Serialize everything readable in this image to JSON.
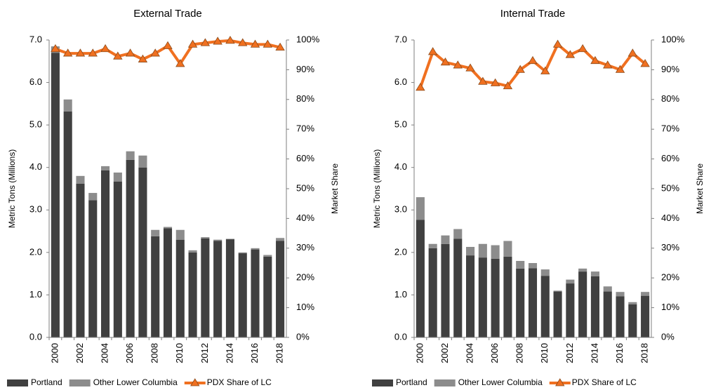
{
  "chart_data": [
    {
      "type": "combo",
      "title": "External Trade",
      "y_label": "Metric Tons (Millions)",
      "y2_label": "Market Share",
      "categories": [
        "2000",
        null,
        "2002",
        null,
        "2004",
        null,
        "2006",
        null,
        "2008",
        null,
        "2010",
        null,
        "2012",
        null,
        "2014",
        null,
        "2016",
        null,
        "2018"
      ],
      "series": [
        {
          "name": "Portland",
          "color": "#404040",
          "kind": "bar",
          "values": [
            6.7,
            5.32,
            3.62,
            3.23,
            3.93,
            3.67,
            4.18,
            4.0,
            2.38,
            2.57,
            2.3,
            2.0,
            2.33,
            2.27,
            2.31,
            1.98,
            2.07,
            1.9,
            2.27
          ]
        },
        {
          "name": "Other Lower Columbia",
          "color": "#8c8c8c",
          "kind": "bar",
          "values": [
            0.15,
            0.28,
            0.18,
            0.17,
            0.1,
            0.21,
            0.2,
            0.28,
            0.15,
            0.03,
            0.23,
            0.05,
            0.03,
            0.03,
            0.01,
            0.02,
            0.03,
            0.04,
            0.07
          ]
        },
        {
          "name": "PDX Share of LC",
          "color": "#f07020",
          "kind": "line",
          "axis": "y2",
          "values": [
            97,
            95.5,
            95.5,
            95.5,
            97,
            94.5,
            95.5,
            93.5,
            95.5,
            98,
            92,
            98.5,
            99,
            99.5,
            99.8,
            99,
            98.5,
            98.5,
            97.5
          ]
        }
      ],
      "ylim": [
        0,
        7
      ],
      "yticks": [
        {
          "value": 0,
          "label": "0.0"
        },
        {
          "value": 1,
          "label": "1.0"
        },
        {
          "value": 2,
          "label": "2.0"
        },
        {
          "value": 3,
          "label": "3.0"
        },
        {
          "value": 4,
          "label": "4.0"
        },
        {
          "value": 5,
          "label": "5.0"
        },
        {
          "value": 6,
          "label": "6.0"
        },
        {
          "value": 7,
          "label": "7.0"
        }
      ],
      "y2lim": [
        0,
        100
      ],
      "y2ticks": [
        {
          "value": 0,
          "label": "0%"
        },
        {
          "value": 10,
          "label": "10%"
        },
        {
          "value": 20,
          "label": "20%"
        },
        {
          "value": 30,
          "label": "30%"
        },
        {
          "value": 40,
          "label": "40%"
        },
        {
          "value": 50,
          "label": "50%"
        },
        {
          "value": 60,
          "label": "60%"
        },
        {
          "value": 70,
          "label": "70%"
        },
        {
          "value": 80,
          "label": "80%"
        },
        {
          "value": 90,
          "label": "90%"
        },
        {
          "value": 100,
          "label": "100%"
        }
      ],
      "legend": "bottom",
      "grid": false
    },
    {
      "type": "combo",
      "title": "Internal Trade",
      "y_label": "Metric Tons (Millions)",
      "y2_label": "Market Share",
      "categories": [
        "2000",
        null,
        "2002",
        null,
        "2004",
        null,
        "2006",
        null,
        "2008",
        null,
        "2010",
        null,
        "2012",
        null,
        "2014",
        null,
        "2016",
        null,
        "2018"
      ],
      "series": [
        {
          "name": "Portland",
          "color": "#404040",
          "kind": "bar",
          "values": [
            2.77,
            2.1,
            2.2,
            2.32,
            1.93,
            1.88,
            1.85,
            1.9,
            1.62,
            1.63,
            1.45,
            1.08,
            1.27,
            1.55,
            1.44,
            1.08,
            0.97,
            0.78,
            0.98
          ]
        },
        {
          "name": "Other Lower Columbia",
          "color": "#8c8c8c",
          "kind": "bar",
          "values": [
            0.53,
            0.1,
            0.2,
            0.23,
            0.2,
            0.32,
            0.32,
            0.37,
            0.18,
            0.12,
            0.15,
            0.02,
            0.09,
            0.07,
            0.11,
            0.12,
            0.1,
            0.05,
            0.09
          ]
        },
        {
          "name": "PDX Share of LC",
          "color": "#f07020",
          "kind": "line",
          "axis": "y2",
          "values": [
            84,
            96,
            92.5,
            91.5,
            90.5,
            86,
            85.5,
            84.5,
            90,
            93,
            89.5,
            98.5,
            95,
            97,
            93,
            91.5,
            90,
            95.5,
            92
          ]
        }
      ],
      "ylim": [
        0,
        7
      ],
      "yticks": [
        {
          "value": 0,
          "label": "0.0"
        },
        {
          "value": 1,
          "label": "1.0"
        },
        {
          "value": 2,
          "label": "2.0"
        },
        {
          "value": 3,
          "label": "3.0"
        },
        {
          "value": 4,
          "label": "4.0"
        },
        {
          "value": 5,
          "label": "5.0"
        },
        {
          "value": 6,
          "label": "6.0"
        },
        {
          "value": 7,
          "label": "7.0"
        }
      ],
      "y2lim": [
        0,
        100
      ],
      "y2ticks": [
        {
          "value": 0,
          "label": "0%"
        },
        {
          "value": 10,
          "label": "10%"
        },
        {
          "value": 20,
          "label": "20%"
        },
        {
          "value": 30,
          "label": "30%"
        },
        {
          "value": 40,
          "label": "40%"
        },
        {
          "value": 50,
          "label": "50%"
        },
        {
          "value": 60,
          "label": "60%"
        },
        {
          "value": 70,
          "label": "70%"
        },
        {
          "value": 80,
          "label": "80%"
        },
        {
          "value": 90,
          "label": "90%"
        },
        {
          "value": 100,
          "label": "100%"
        }
      ],
      "legend": "bottom",
      "grid": false
    }
  ]
}
